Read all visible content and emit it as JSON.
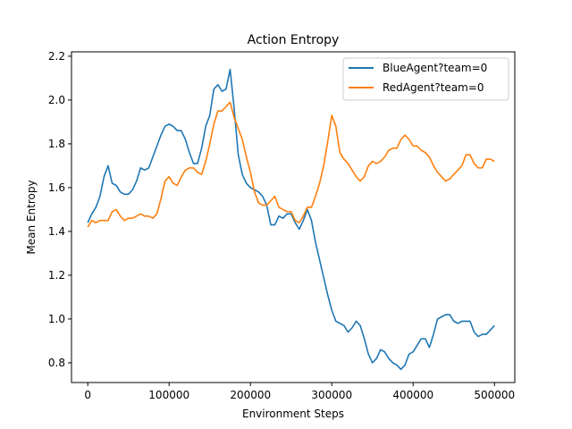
{
  "chart_data": {
    "type": "line",
    "title": "Action Entropy",
    "xlabel": "Environment Steps",
    "ylabel": "Mean Entropy",
    "xlim": [
      -20000,
      525000
    ],
    "ylim": [
      0.71,
      2.22
    ],
    "xticks": [
      0,
      100000,
      200000,
      300000,
      400000,
      500000
    ],
    "xtick_labels": [
      "0",
      "100000",
      "200000",
      "300000",
      "400000",
      "500000"
    ],
    "yticks": [
      0.8,
      1.0,
      1.2,
      1.4,
      1.6,
      1.8,
      2.0,
      2.2
    ],
    "ytick_labels": [
      "0.8",
      "1.0",
      "1.2",
      "1.4",
      "1.6",
      "1.8",
      "2.0",
      "2.2"
    ],
    "grid": false,
    "legend": "top-right",
    "series": [
      {
        "name": "BlueAgent?team=0",
        "color": "#1f77b4",
        "x": [
          0,
          5000,
          10000,
          15000,
          20000,
          25000,
          30000,
          35000,
          40000,
          45000,
          50000,
          55000,
          60000,
          65000,
          70000,
          75000,
          80000,
          85000,
          90000,
          95000,
          100000,
          105000,
          110000,
          115000,
          120000,
          125000,
          130000,
          135000,
          140000,
          145000,
          150000,
          155000,
          160000,
          165000,
          170000,
          175000,
          180000,
          185000,
          190000,
          195000,
          200000,
          205000,
          210000,
          215000,
          220000,
          225000,
          230000,
          235000,
          240000,
          245000,
          250000,
          255000,
          260000,
          265000,
          270000,
          275000,
          280000,
          285000,
          290000,
          295000,
          300000,
          305000,
          310000,
          315000,
          320000,
          325000,
          330000,
          335000,
          340000,
          345000,
          350000,
          355000,
          360000,
          365000,
          370000,
          375000,
          380000,
          385000,
          390000,
          395000,
          400000,
          405000,
          410000,
          415000,
          420000,
          425000,
          430000,
          435000,
          440000,
          445000,
          450000,
          455000,
          460000,
          465000,
          470000,
          475000,
          480000,
          485000,
          490000,
          495000,
          500000
        ],
        "y": [
          1.44,
          1.48,
          1.51,
          1.56,
          1.65,
          1.7,
          1.62,
          1.61,
          1.58,
          1.57,
          1.57,
          1.59,
          1.63,
          1.69,
          1.68,
          1.69,
          1.74,
          1.79,
          1.84,
          1.88,
          1.89,
          1.88,
          1.86,
          1.86,
          1.82,
          1.76,
          1.71,
          1.71,
          1.78,
          1.88,
          1.93,
          2.05,
          2.07,
          2.04,
          2.05,
          2.14,
          1.96,
          1.75,
          1.66,
          1.62,
          1.6,
          1.59,
          1.58,
          1.56,
          1.52,
          1.43,
          1.43,
          1.47,
          1.46,
          1.48,
          1.48,
          1.44,
          1.41,
          1.45,
          1.5,
          1.45,
          1.35,
          1.27,
          1.19,
          1.11,
          1.04,
          0.99,
          0.98,
          0.97,
          0.94,
          0.96,
          0.99,
          0.97,
          0.91,
          0.84,
          0.8,
          0.82,
          0.86,
          0.85,
          0.82,
          0.8,
          0.79,
          0.77,
          0.79,
          0.84,
          0.85,
          0.88,
          0.91,
          0.91,
          0.87,
          0.93,
          1.0,
          1.01,
          1.02,
          1.02,
          0.99,
          0.98,
          0.99,
          0.99,
          0.99,
          0.94,
          0.92,
          0.93,
          0.93,
          0.95,
          0.97
        ]
      },
      {
        "name": "RedAgent?team=0",
        "color": "#ff7f0e",
        "x": [
          0,
          5000,
          10000,
          15000,
          20000,
          25000,
          30000,
          35000,
          40000,
          45000,
          50000,
          55000,
          60000,
          65000,
          70000,
          75000,
          80000,
          85000,
          90000,
          95000,
          100000,
          105000,
          110000,
          115000,
          120000,
          125000,
          130000,
          135000,
          140000,
          145000,
          150000,
          155000,
          160000,
          165000,
          170000,
          175000,
          180000,
          185000,
          190000,
          195000,
          200000,
          205000,
          210000,
          215000,
          220000,
          225000,
          230000,
          235000,
          240000,
          245000,
          250000,
          255000,
          260000,
          265000,
          270000,
          275000,
          280000,
          285000,
          290000,
          295000,
          300000,
          305000,
          310000,
          315000,
          320000,
          325000,
          330000,
          335000,
          340000,
          345000,
          350000,
          355000,
          360000,
          365000,
          370000,
          375000,
          380000,
          385000,
          390000,
          395000,
          400000,
          405000,
          410000,
          415000,
          420000,
          425000,
          430000,
          435000,
          440000,
          445000,
          450000,
          455000,
          460000,
          465000,
          470000,
          475000,
          480000,
          485000,
          490000,
          495000,
          500000
        ],
        "y": [
          1.42,
          1.45,
          1.44,
          1.45,
          1.45,
          1.45,
          1.49,
          1.5,
          1.47,
          1.45,
          1.46,
          1.46,
          1.47,
          1.48,
          1.47,
          1.47,
          1.46,
          1.48,
          1.55,
          1.63,
          1.65,
          1.62,
          1.61,
          1.65,
          1.68,
          1.69,
          1.69,
          1.67,
          1.66,
          1.72,
          1.8,
          1.89,
          1.95,
          1.95,
          1.97,
          1.99,
          1.92,
          1.87,
          1.82,
          1.74,
          1.67,
          1.58,
          1.53,
          1.52,
          1.52,
          1.54,
          1.56,
          1.51,
          1.5,
          1.49,
          1.49,
          1.45,
          1.44,
          1.47,
          1.51,
          1.51,
          1.56,
          1.62,
          1.7,
          1.81,
          1.93,
          1.88,
          1.76,
          1.73,
          1.71,
          1.68,
          1.65,
          1.63,
          1.65,
          1.7,
          1.72,
          1.71,
          1.72,
          1.74,
          1.77,
          1.78,
          1.78,
          1.82,
          1.84,
          1.82,
          1.79,
          1.79,
          1.77,
          1.76,
          1.74,
          1.7,
          1.67,
          1.65,
          1.63,
          1.64,
          1.66,
          1.68,
          1.7,
          1.75,
          1.75,
          1.71,
          1.69,
          1.69,
          1.73,
          1.73,
          1.72
        ]
      }
    ]
  }
}
